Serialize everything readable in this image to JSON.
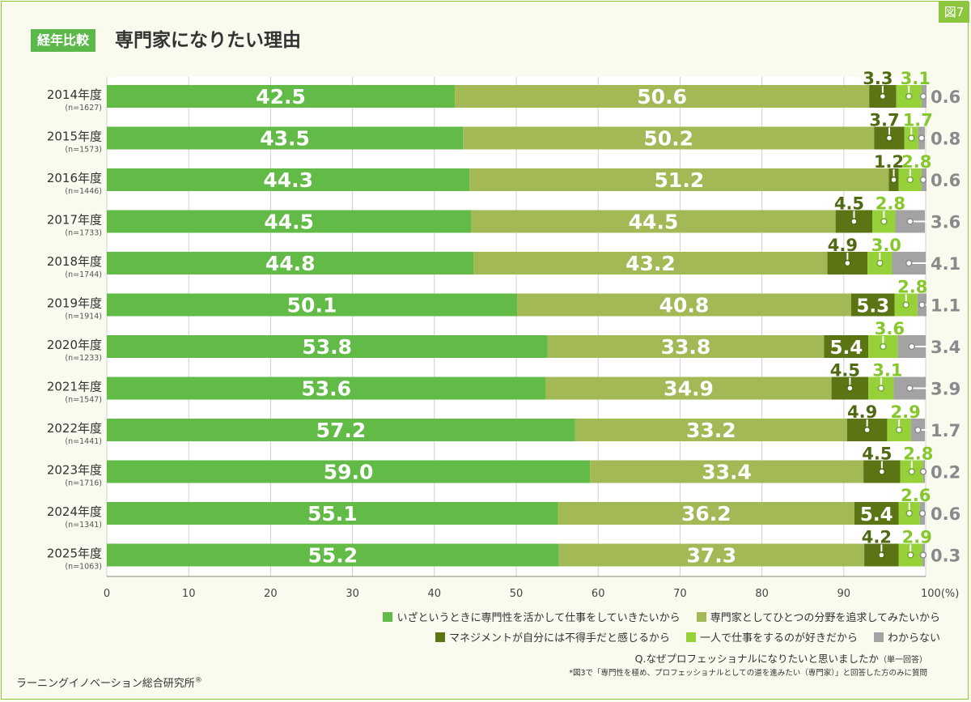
{
  "figure_tag": "図7",
  "badge": "経年比較",
  "title": "専門家になりたい理由",
  "question": "Q.なぜプロフェッショナルになりたいと思いましたか",
  "question_note": "（単一回答）",
  "footnote": "*図3で「専門性を極め、プロフェッショナルとしての道を進みたい（専門家）」と回答した方のみに質問",
  "credit": "ラーニングイノベーション総合研究所",
  "credit_mark": "®",
  "chart_data": {
    "type": "bar",
    "orientation": "horizontal",
    "stacked": true,
    "xlim": [
      0,
      100
    ],
    "x_ticks": [
      "0",
      "10",
      "20",
      "30",
      "40",
      "50",
      "60",
      "70",
      "80",
      "90",
      "100(%)"
    ],
    "grid": true,
    "legend_position": "bottom-right",
    "categories": [
      "2014年度",
      "2015年度",
      "2016年度",
      "2017年度",
      "2018年度",
      "2019年度",
      "2020年度",
      "2021年度",
      "2022年度",
      "2023年度",
      "2024年度",
      "2025年度"
    ],
    "n_labels": [
      "(n=1627)",
      "(n=1573)",
      "(n=1446)",
      "(n=1733)",
      "(n=1744)",
      "(n=1914)",
      "(n=1233)",
      "(n=1547)",
      "(n=1441)",
      "(n=1716)",
      "(n=1341)",
      "(n=1063)"
    ],
    "series": [
      {
        "name": "いざというときに専門性を活かして仕事をしていきたいから",
        "color": "#62bb46",
        "values": [
          42.5,
          43.5,
          44.3,
          44.5,
          44.8,
          50.1,
          53.8,
          53.6,
          57.2,
          59.0,
          55.1,
          55.2
        ],
        "labels": [
          "42.5",
          "43.5",
          "44.3",
          "44.5",
          "44.8",
          "50.1",
          "53.8",
          "53.6",
          "57.2",
          "59.0",
          "55.1",
          "55.2"
        ]
      },
      {
        "name": "専門家としてひとつの分野を追求してみたいから",
        "color": "#a2b956",
        "values": [
          50.6,
          50.2,
          51.2,
          44.5,
          43.2,
          40.8,
          33.8,
          34.9,
          33.2,
          33.4,
          36.2,
          37.3
        ],
        "labels": [
          "50.6",
          "50.2",
          "51.2",
          "44.5",
          "43.2",
          "40.8",
          "33.8",
          "34.9",
          "33.2",
          "33.4",
          "36.2",
          "37.3"
        ]
      },
      {
        "name": "マネジメントが自分には不得手だと感じるから",
        "color": "#5b7414",
        "values": [
          3.3,
          3.7,
          1.2,
          4.5,
          4.9,
          5.3,
          5.4,
          4.5,
          4.9,
          4.5,
          5.4,
          4.2
        ],
        "labels": [
          "3.3",
          "3.7",
          "1.2",
          "4.5",
          "4.9",
          "5.3",
          "5.4",
          "4.5",
          "4.9",
          "4.5",
          "5.4",
          "4.2"
        ]
      },
      {
        "name": "一人で仕事をするのが好きだから",
        "color": "#96d13a",
        "values": [
          3.1,
          1.7,
          2.8,
          2.8,
          3.0,
          2.8,
          3.6,
          3.1,
          2.9,
          2.8,
          2.6,
          2.9
        ],
        "labels": [
          "3.1",
          "1.7",
          "2.8",
          "2.8",
          "3.0",
          "2.8",
          "3.6",
          "3.1",
          "2.9",
          "2.8",
          "2.6",
          "2.9"
        ]
      },
      {
        "name": "わからない",
        "color": "#a3a3a3",
        "values": [
          0.6,
          0.8,
          0.6,
          3.6,
          4.1,
          1.1,
          3.4,
          3.9,
          1.7,
          0.2,
          0.6,
          0.3
        ],
        "labels": [
          "0.6",
          "0.8",
          "0.6",
          "3.6",
          "4.1",
          "1.1",
          "3.4",
          "3.9",
          "1.7",
          "0.2",
          "0.6",
          "0.3"
        ]
      }
    ]
  }
}
